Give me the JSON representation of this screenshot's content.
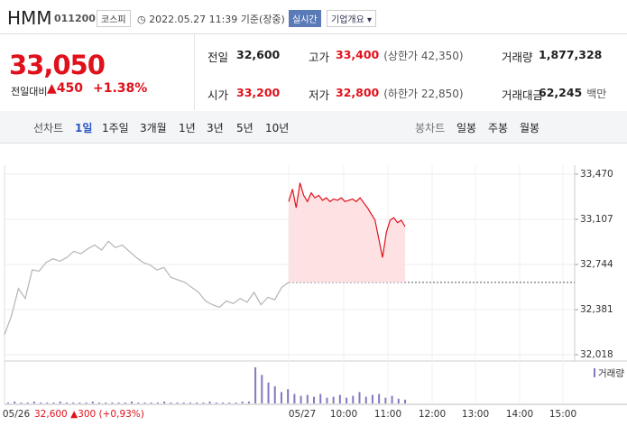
{
  "header": {
    "name": "HMM",
    "code": "011200",
    "market": "코스피",
    "time": "2022.05.27 11:39 기준(장중)",
    "realtime": "실시간",
    "company": "기업개요"
  },
  "price": {
    "current": "33,050",
    "change_label": "전일대비",
    "change": "▲450",
    "change_pct": "+1.38%"
  },
  "stats": [
    [
      {
        "label": "전일",
        "value": "32,600"
      },
      {
        "label": "고가",
        "value": "33,400",
        "extra": "(상한가 42,350)"
      },
      {
        "label": "거래량",
        "value": "1,877,328"
      }
    ],
    [
      {
        "label": "시가",
        "value": "33,200"
      },
      {
        "label": "저가",
        "value": "32,800",
        "extra": "(하한가 22,850)"
      },
      {
        "label": "거래대금",
        "value": "62,245",
        "extra": "백만"
      }
    ]
  ],
  "tabs": {
    "line_label": "선차트",
    "line": [
      "1일",
      "1주일",
      "3개월",
      "1년",
      "3년",
      "5년",
      "10년"
    ],
    "candle_label": "봉차트",
    "candle": [
      "일봉",
      "주봉",
      "월봉"
    ]
  },
  "chart_data": {
    "type": "line",
    "ylim": [
      32018,
      33470
    ],
    "yticks": [
      {
        "value": 33470,
        "label": "33,470"
      },
      {
        "value": 33107,
        "label": "33,107"
      },
      {
        "value": 32744,
        "label": "32,744"
      },
      {
        "value": 32381,
        "label": "32,381"
      },
      {
        "value": 32018,
        "label": "32,018"
      }
    ],
    "grid": true,
    "reference": 32600,
    "series": [
      {
        "color": "#b4b4b4",
        "values": [
          32180,
          32330,
          32550,
          32470,
          32700,
          32690,
          32760,
          32790,
          32770,
          32800,
          32850,
          32830,
          32870,
          32900,
          32860,
          32930,
          32880,
          32900,
          32850,
          32800,
          32760,
          32740,
          32700,
          32720,
          32640,
          32620,
          32600,
          32560,
          32520,
          32450,
          32420,
          32400,
          32450,
          32430,
          32470,
          32440,
          32520,
          32420,
          32480,
          32460,
          32560,
          32600
        ]
      },
      {
        "color": "#e0111b",
        "fill": "#fde1e3",
        "values": [
          33250,
          33350,
          33200,
          33400,
          33300,
          33250,
          33320,
          33280,
          33300,
          33260,
          33280,
          33250,
          33270,
          33260,
          33280,
          33250,
          33260,
          33270,
          33250,
          33280,
          33240,
          33200,
          33150,
          33100,
          32950,
          32800,
          33000,
          33100,
          33120,
          33080,
          33100,
          33050
        ]
      }
    ],
    "volume": {
      "name": "거래량",
      "color": "#8677bf",
      "values": [
        1,
        2,
        1,
        1,
        2,
        1,
        1,
        1,
        2,
        1,
        1,
        1,
        1,
        2,
        1,
        1,
        1,
        1,
        1,
        2,
        1,
        1,
        1,
        1,
        2,
        1,
        1,
        1,
        1,
        1,
        1,
        2,
        1,
        1,
        1,
        1,
        2,
        2,
        38,
        30,
        22,
        18,
        12,
        15,
        10,
        8,
        9,
        7,
        10,
        6,
        7,
        9,
        6,
        8,
        12,
        7,
        9,
        10,
        6,
        8,
        5,
        4
      ]
    },
    "x_labels": [
      "05/26",
      "05/27",
      "10:00",
      "11:00",
      "12:00",
      "13:00",
      "14:00",
      "15:00"
    ],
    "summary": "32,600 ▲300 (+0,93%)"
  }
}
